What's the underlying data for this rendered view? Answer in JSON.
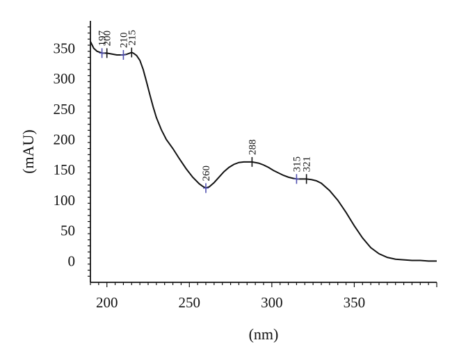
{
  "chart_data": {
    "type": "line",
    "title": "",
    "xlabel": "(nm)",
    "ylabel": "(mAU)",
    "xlim": [
      190,
      400
    ],
    "ylim": [
      -35,
      395
    ],
    "xticks": [
      200,
      250,
      300,
      350
    ],
    "yticks": [
      0,
      50,
      100,
      150,
      200,
      250,
      300,
      350
    ],
    "grid": false,
    "colors": {
      "line": "#111111",
      "axis": "#111111",
      "marker_black": "#111111",
      "marker_blue": "#5050b0"
    },
    "series": [
      {
        "x": [
          190,
          192,
          194,
          196,
          197,
          198,
          200,
          202,
          204,
          206,
          208,
          210,
          212,
          214,
          215,
          216,
          218,
          220,
          222,
          224,
          226,
          228,
          230,
          233,
          236,
          240,
          244,
          248,
          252,
          256,
          258,
          260,
          262,
          265,
          268,
          271,
          274,
          277,
          280,
          283,
          286,
          288,
          290,
          292,
          295,
          298,
          301,
          304,
          307,
          310,
          313,
          315,
          318,
          321,
          324,
          327,
          330,
          335,
          340,
          345,
          350,
          355,
          360,
          365,
          370,
          375,
          380,
          385,
          390,
          395,
          400
        ],
        "y": [
          361,
          350,
          345,
          343,
          342,
          342,
          342,
          341,
          340,
          339,
          339,
          339,
          340,
          342,
          343,
          342,
          338,
          330,
          315,
          295,
          274,
          254,
          236,
          216,
          200,
          185,
          168,
          152,
          138,
          127,
          123,
          120,
          122,
          129,
          138,
          147,
          154,
          159,
          162,
          163,
          163,
          163,
          162,
          161,
          158,
          154,
          149,
          145,
          141,
          138,
          136,
          135,
          135,
          135,
          134,
          132,
          128,
          116,
          100,
          80,
          58,
          38,
          22,
          12,
          6,
          3,
          2,
          1,
          1,
          0,
          0
        ]
      }
    ],
    "annotations": [
      {
        "x": 197,
        "y": 342,
        "label": "197",
        "marker": "blue"
      },
      {
        "x": 200,
        "y": 342,
        "label": "200",
        "marker": "black"
      },
      {
        "x": 210,
        "y": 339,
        "label": "210",
        "marker": "blue"
      },
      {
        "x": 215,
        "y": 343,
        "label": "215",
        "marker": "black"
      },
      {
        "x": 260,
        "y": 120,
        "label": "260",
        "marker": "blue"
      },
      {
        "x": 288,
        "y": 163,
        "label": "288",
        "marker": "black"
      },
      {
        "x": 315,
        "y": 135,
        "label": "315",
        "marker": "blue"
      },
      {
        "x": 321,
        "y": 135,
        "label": "321",
        "marker": "black"
      }
    ]
  }
}
